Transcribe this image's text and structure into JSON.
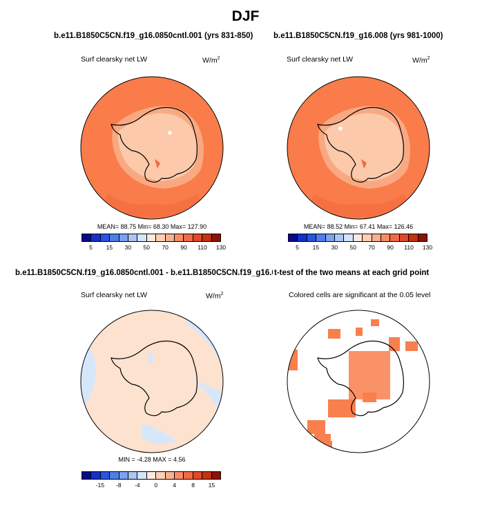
{
  "title": "DJF",
  "panels": [
    {
      "title": "b.e11.B1850C5CN.f19_g16.0850cntl.001 (yrs 831-850)",
      "subtitle": "Surf clearsky net LW",
      "unit": "W/m",
      "unit_sup": "2",
      "stats": "MEAN=  88.75  Min=  68.30  Max= 127.90"
    },
    {
      "title": "b.e11.B1850C5CN.f19_g16.008 (yrs 981-1000)",
      "subtitle": "Surf clearsky net LW",
      "unit": "W/m",
      "unit_sup": "2",
      "stats": "MEAN=  88.52  Min=  67.41  Max= 126.46"
    },
    {
      "title": "b.e11.B1850C5CN.f19_g16.0850cntl.001 - b.e11.B1850C5CN.f19_g16.008",
      "subtitle": "Surf clearsky net LW",
      "unit": "W/m",
      "unit_sup": "2",
      "stats": "MIN =  -4.28 MAX =  4.56"
    },
    {
      "title": "t-test of the two means at each grid point",
      "subtitle": "Colored cells are significant at the 0.05 level"
    }
  ],
  "colorbars": {
    "abs": {
      "colors": [
        "#0a0a8c",
        "#1530c8",
        "#2a55e0",
        "#4e7fe8",
        "#7aa2ee",
        "#a9c6f4",
        "#d4e6fa",
        "#ffe9dc",
        "#fdd0b6",
        "#f9b08f",
        "#f58e68",
        "#ef6a45",
        "#e04a28",
        "#c23214",
        "#8c1406"
      ],
      "labels": [
        "5",
        "15",
        "30",
        "50",
        "70",
        "90",
        "110",
        "130"
      ]
    },
    "diff": {
      "colors": [
        "#0a0a8c",
        "#1530c8",
        "#2a55e0",
        "#4e7fe8",
        "#7aa2ee",
        "#a9c6f4",
        "#d4e6fa",
        "#ffe9dc",
        "#fdd0b6",
        "#f9b08f",
        "#f58e68",
        "#ef6a45",
        "#e04a28",
        "#c23214",
        "#8c1406"
      ],
      "labels": [
        "-15",
        "-8",
        "-4",
        "0",
        "4",
        "8",
        "15"
      ]
    }
  },
  "map_colors": {
    "ocean": "#fa7c4b",
    "ocean_warm": "#f46a3c",
    "land_low": "#fcc9ab",
    "land_mid": "#f9a982",
    "diff_pos": "#fde2cf",
    "diff_neg": "#d7e7fb",
    "signif": "#f97f4e",
    "coast": "#000000"
  }
}
